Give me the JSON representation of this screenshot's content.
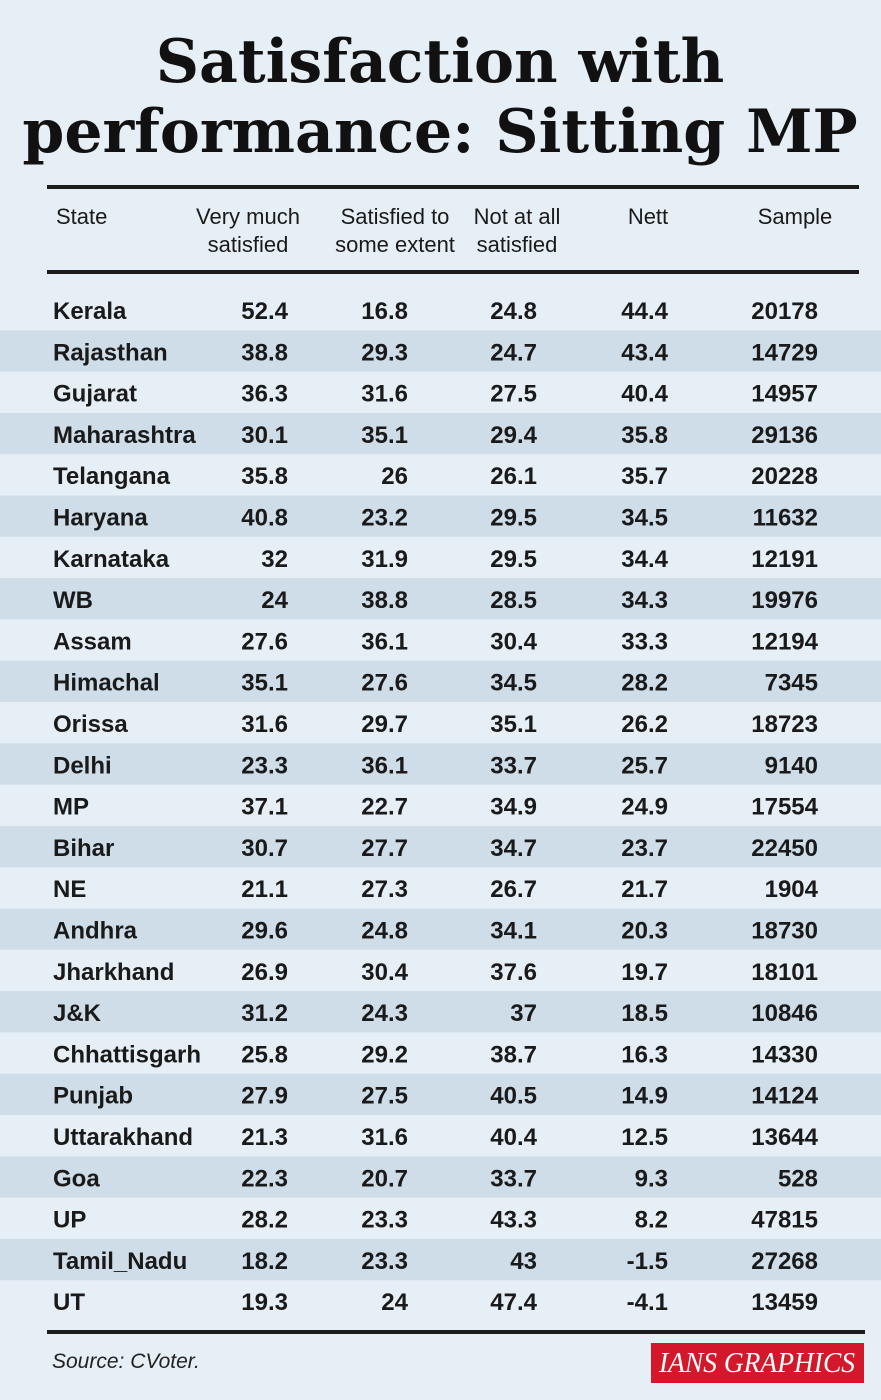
{
  "title_line1": "Satisfaction with",
  "title_line2": "performance: Sitting MP",
  "source": "Source: CVoter.",
  "credit": "IANS GRAPHICS",
  "colors": {
    "background": "#e6eff6",
    "stripe": "#cfdde9",
    "rule": "#1c1c1c",
    "badge": "#d4182b"
  },
  "chart_data": {
    "type": "table",
    "columns": [
      [
        "State"
      ],
      [
        "Very much",
        "satisfied"
      ],
      [
        "Satisfied to",
        "some extent"
      ],
      [
        "Not at all",
        "satisfied"
      ],
      [
        "Nett"
      ],
      [
        "Sample"
      ]
    ],
    "rows": [
      [
        "Kerala",
        "52.4",
        "16.8",
        "24.8",
        "44.4",
        "20178"
      ],
      [
        "Rajasthan",
        "38.8",
        "29.3",
        "24.7",
        "43.4",
        "14729"
      ],
      [
        "Gujarat",
        "36.3",
        "31.6",
        "27.5",
        "40.4",
        "14957"
      ],
      [
        "Maharashtra",
        "30.1",
        "35.1",
        "29.4",
        "35.8",
        "29136"
      ],
      [
        "Telangana",
        "35.8",
        "26",
        "26.1",
        "35.7",
        "20228"
      ],
      [
        "Haryana",
        "40.8",
        "23.2",
        "29.5",
        "34.5",
        "11632"
      ],
      [
        "Karnataka",
        "32",
        "31.9",
        "29.5",
        "34.4",
        "12191"
      ],
      [
        "WB",
        "24",
        "38.8",
        "28.5",
        "34.3",
        "19976"
      ],
      [
        "Assam",
        "27.6",
        "36.1",
        "30.4",
        "33.3",
        "12194"
      ],
      [
        "Himachal",
        "35.1",
        "27.6",
        "34.5",
        "28.2",
        "7345"
      ],
      [
        "Orissa",
        "31.6",
        "29.7",
        "35.1",
        "26.2",
        "18723"
      ],
      [
        "Delhi",
        "23.3",
        "36.1",
        "33.7",
        "25.7",
        "9140"
      ],
      [
        "MP",
        "37.1",
        "22.7",
        "34.9",
        "24.9",
        "17554"
      ],
      [
        "Bihar",
        "30.7",
        "27.7",
        "34.7",
        "23.7",
        "22450"
      ],
      [
        "NE",
        "21.1",
        "27.3",
        "26.7",
        "21.7",
        "1904"
      ],
      [
        "Andhra",
        "29.6",
        "24.8",
        "34.1",
        "20.3",
        "18730"
      ],
      [
        "Jharkhand",
        "26.9",
        "30.4",
        "37.6",
        "19.7",
        "18101"
      ],
      [
        "J&K",
        "31.2",
        "24.3",
        "37",
        "18.5",
        "10846"
      ],
      [
        "Chhattisgarh",
        "25.8",
        "29.2",
        "38.7",
        "16.3",
        "14330"
      ],
      [
        "Punjab",
        "27.9",
        "27.5",
        "40.5",
        "14.9",
        "14124"
      ],
      [
        "Uttarakhand",
        "21.3",
        "31.6",
        "40.4",
        "12.5",
        "13644"
      ],
      [
        "Goa",
        "22.3",
        "20.7",
        "33.7",
        "9.3",
        "528"
      ],
      [
        "UP",
        "28.2",
        "23.3",
        "43.3",
        "8.2",
        "47815"
      ],
      [
        "Tamil_Nadu",
        "18.2",
        "23.3",
        "43",
        "-1.5",
        "27268"
      ],
      [
        "UT",
        "19.3",
        "24",
        "47.4",
        "-4.1",
        "13459"
      ]
    ]
  }
}
